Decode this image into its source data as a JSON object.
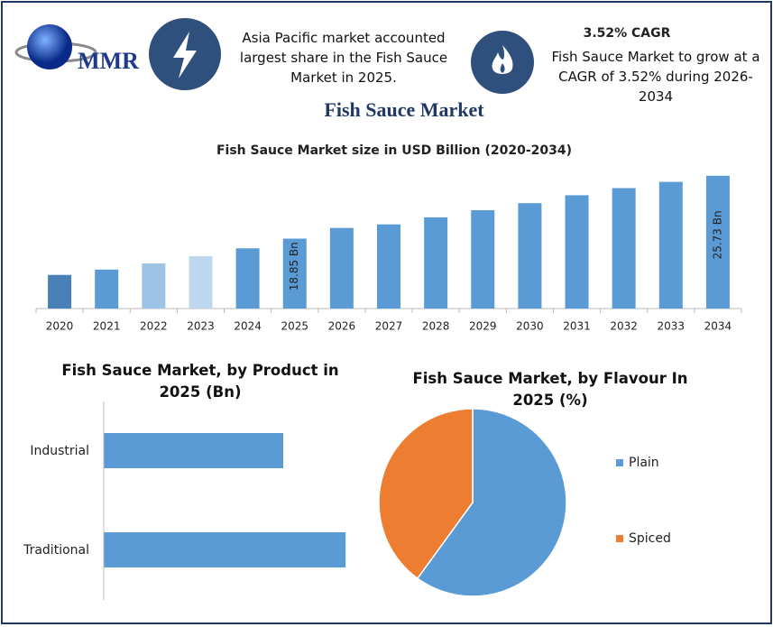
{
  "header": {
    "logo": "MMR",
    "note_left": "Asia Pacific market accounted largest share in the Fish Sauce Market in 2025.",
    "cagr_title": "3.52% CAGR",
    "note_right": "Fish Sauce Market to grow at a CAGR of 3.52% during 2026-2034",
    "title": "Fish Sauce Market"
  },
  "chart_data": [
    {
      "type": "bar",
      "title": "Fish Sauce Market size in USD Billion (2020-2034)",
      "categories": [
        "2020",
        "2021",
        "2022",
        "2023",
        "2024",
        "2025",
        "2026",
        "2027",
        "2028",
        "2029",
        "2030",
        "2031",
        "2032",
        "2033",
        "2034"
      ],
      "values": [
        14.88,
        15.46,
        16.14,
        16.92,
        17.79,
        18.85,
        20.02,
        20.41,
        21.18,
        21.96,
        22.73,
        23.6,
        24.38,
        25.06,
        25.73
      ],
      "value_labels": [
        null,
        null,
        null,
        null,
        null,
        "18.85 Bn",
        null,
        null,
        null,
        null,
        null,
        null,
        null,
        null,
        "25.73 Bn"
      ],
      "colors": [
        "#4a80b8",
        "#5b9bd5",
        "#9dc3e6",
        "#bdd7ee",
        "#5b9bd5",
        "#5b9bd5",
        "#5b9bd5",
        "#5b9bd5",
        "#5b9bd5",
        "#5b9bd5",
        "#5b9bd5",
        "#5b9bd5",
        "#5b9bd5",
        "#5b9bd5",
        "#5b9bd5"
      ],
      "ylim": [
        11.2,
        26.7
      ]
    },
    {
      "type": "barh",
      "title": "Fish Sauce Market, by Product in 2025 (Bn)",
      "categories": [
        "Industrial",
        "Traditional"
      ],
      "values": [
        8.03,
        10.82
      ],
      "color": "#5b9bd5",
      "xlim": [
        0,
        11.5
      ]
    },
    {
      "type": "pie",
      "title": "Fish Sauce Market, by Flavour In 2025 (%)",
      "categories": [
        "Plain",
        "Spiced"
      ],
      "values": [
        60,
        40
      ],
      "colors": [
        "#5b9bd5",
        "#ed7d31"
      ],
      "legend": "right"
    }
  ]
}
